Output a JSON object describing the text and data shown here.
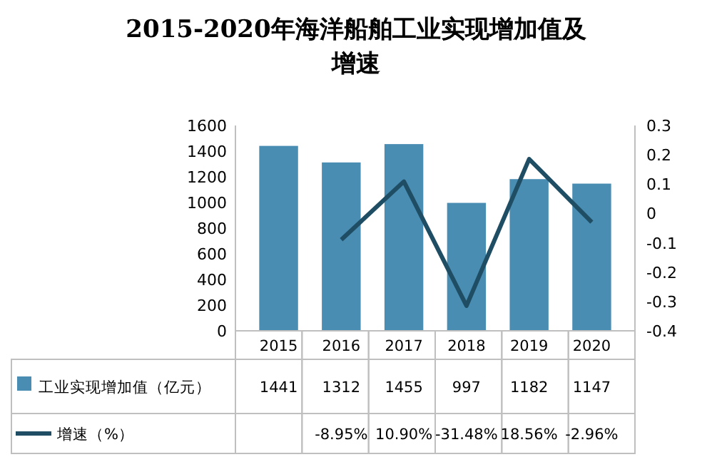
{
  "chart_data": {
    "type": "bar",
    "title": "2015-2020年海洋船舶工业实现增加值及增速",
    "categories": [
      "2015",
      "2016",
      "2017",
      "2018",
      "2019",
      "2020"
    ],
    "series": [
      {
        "name": "工业实现增加值（亿元）",
        "color": "#4a8db3",
        "values": [
          1441,
          1312,
          1455,
          997,
          1182,
          1147
        ],
        "value_labels": [
          "1441",
          "1312",
          "1455",
          "997",
          "1182",
          "1147"
        ]
      },
      {
        "name": "增速（%）",
        "type": "line",
        "axis": "y2",
        "color": "#1f4e64",
        "values": [
          null,
          -0.0895,
          0.109,
          -0.3148,
          0.1856,
          -0.0296
        ],
        "value_labels": [
          null,
          "-8.95%",
          "10.90%",
          "-31.48%",
          "18.56%",
          "-2.96%"
        ],
        "marker": "none",
        "line_style": "solid"
      }
    ],
    "ylim": [
      0,
      1600
    ],
    "yticks": [
      0,
      200,
      400,
      600,
      800,
      1000,
      1200,
      1400,
      1600
    ],
    "y2lim": [
      -0.4,
      0.3
    ],
    "y2ticks": [
      -0.4,
      -0.3,
      -0.2,
      -0.1,
      0,
      0.1,
      0.2,
      0.3
    ],
    "legend": "bottom"
  }
}
